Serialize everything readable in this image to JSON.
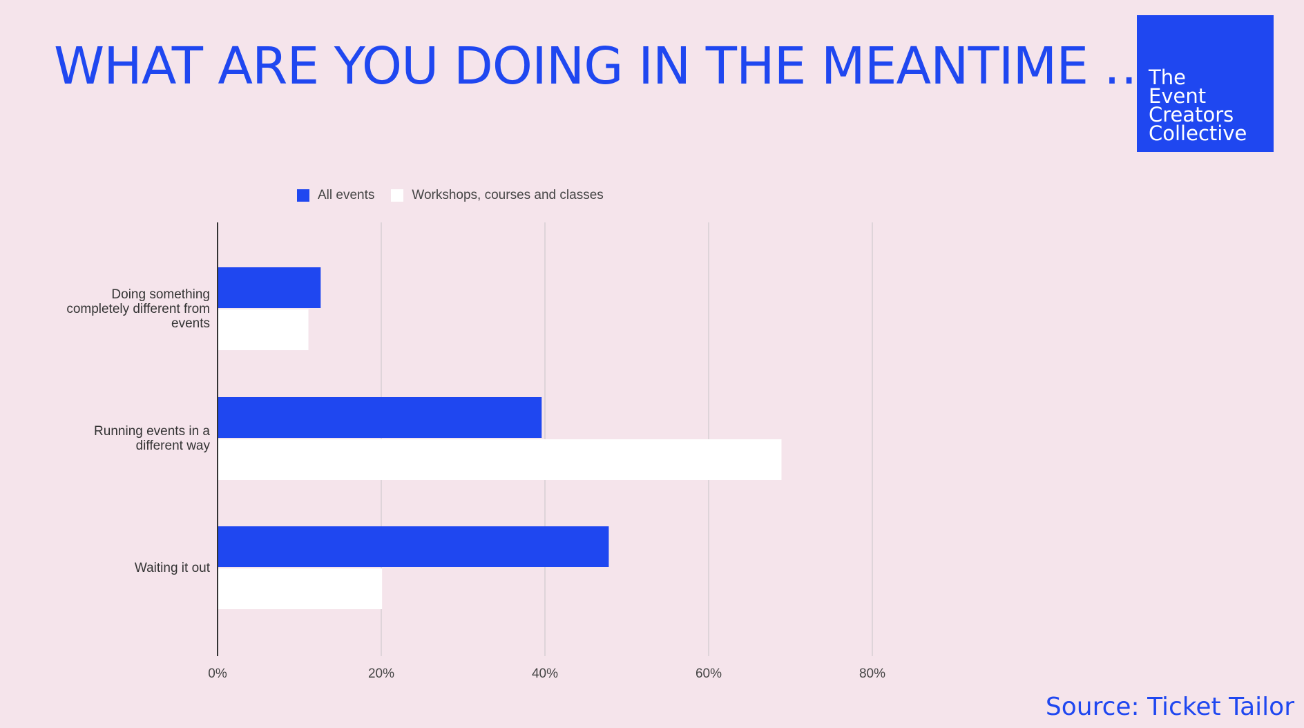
{
  "title": "WHAT ARE YOU DOING IN THE MEANTIME …",
  "logo": {
    "lines": [
      "The",
      "Event",
      "Creators",
      "Collective"
    ]
  },
  "source": "Source: Ticket Tailor",
  "colors": {
    "background": "#f5e4eb",
    "accent": "#1f47f0",
    "series_all": "#1f47f0",
    "series_workshops": "#ffffff",
    "grid": "#d6cfd3",
    "axis": "#333333"
  },
  "chart_data": {
    "type": "bar",
    "orientation": "horizontal",
    "categories": [
      "Doing something completely different from events",
      "Running events in a different way",
      "Waiting it out"
    ],
    "category_lines": [
      [
        "Doing something",
        "completely different from",
        "events"
      ],
      [
        "Running events in a",
        "different way"
      ],
      [
        "Waiting it out"
      ]
    ],
    "series": [
      {
        "name": "All events",
        "values": [
          12.6,
          39.6,
          47.8
        ]
      },
      {
        "name": "Workshops, courses and classes",
        "values": [
          11.1,
          68.9,
          20.1
        ]
      }
    ],
    "xlim": [
      0,
      80
    ],
    "xticks": [
      "0%",
      "20%",
      "40%",
      "60%",
      "80%"
    ],
    "grid": true,
    "legend": "top"
  }
}
